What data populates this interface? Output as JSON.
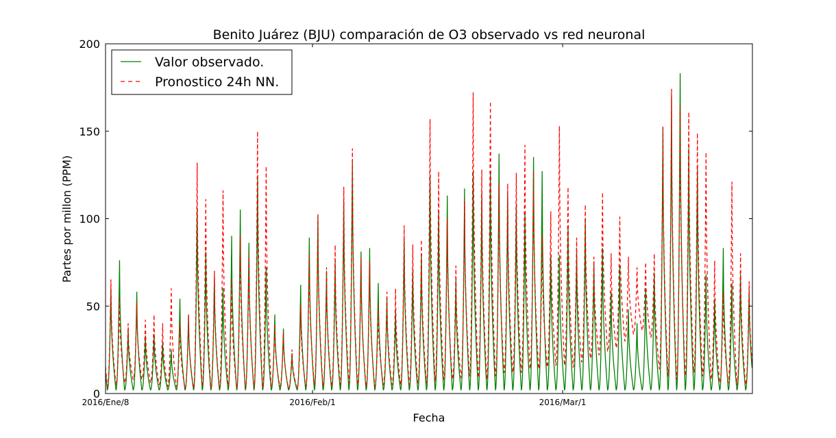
{
  "chart_data": {
    "type": "line",
    "title": "Benito Juárez (BJU) comparación de O3 observado vs red neuronal",
    "xlabel": "Fecha",
    "ylabel": "Partes por millon (PPM)",
    "xlim": [
      "2016-01-08",
      "2016-03-23"
    ],
    "ylim": [
      0,
      200
    ],
    "y_ticks": [
      0,
      50,
      100,
      150,
      200
    ],
    "x_ticks": [
      {
        "date": "2016-01-08",
        "label": "2016/Ene/8"
      },
      {
        "date": "2016-02-01",
        "label": "2016/Feb/1"
      },
      {
        "date": "2016-03-01",
        "label": "2016/Mar/1"
      }
    ],
    "grid": false,
    "legend_position": "top-left",
    "sampling": "daily maximum (hourly series; daily peak near 15:00, minimum near 05:00)",
    "series": [
      {
        "name": "Valor observado.",
        "color": "#008000",
        "style": "solid",
        "start_date": "2016-01-08",
        "daily_peaks": [
          60,
          76,
          37,
          58,
          33,
          34,
          29,
          25,
          54,
          45,
          106,
          81,
          67,
          60,
          90,
          105,
          86,
          123,
          72,
          45,
          37,
          23,
          62,
          89,
          101,
          70,
          75,
          110,
          133,
          81,
          83,
          63,
          55,
          47,
          89,
          71,
          80,
          125,
          104,
          113,
          65,
          117,
          127,
          115,
          127,
          137,
          115,
          108,
          104,
          135,
          127,
          79,
          79,
          96,
          81,
          100,
          75,
          83,
          58,
          73,
          48,
          40,
          60,
          69,
          152,
          170,
          183,
          140,
          130,
          68,
          54,
          83,
          63,
          68,
          59
        ],
        "daily_lows": [
          2,
          2,
          2,
          2,
          2,
          2,
          2,
          2,
          2,
          2,
          2,
          2,
          2,
          2,
          2,
          2,
          2,
          2,
          2,
          2,
          2,
          2,
          2,
          2,
          2,
          2,
          2,
          2,
          2,
          2,
          2,
          2,
          2,
          2,
          2,
          2,
          2,
          2,
          2,
          2,
          2,
          2,
          2,
          2,
          2,
          2,
          2,
          2,
          2,
          2,
          2,
          2,
          2,
          2,
          2,
          2,
          2,
          2,
          2,
          2,
          2,
          2,
          2,
          2,
          2,
          2,
          2,
          2,
          2,
          2,
          2,
          2,
          2,
          2,
          2
        ]
      },
      {
        "name": "Pronostico 24h NN.",
        "color": "#ff0000",
        "style": "dashed",
        "start_date": "2016-01-08",
        "daily_peaks": [
          65,
          55,
          40,
          52,
          42,
          45,
          40,
          60,
          40,
          45,
          132,
          111,
          70,
          116,
          65,
          90,
          80,
          150,
          130,
          40,
          35,
          25,
          50,
          80,
          103,
          72,
          85,
          118,
          140,
          77,
          75,
          50,
          58,
          60,
          96,
          85,
          88,
          157,
          127,
          100,
          73,
          110,
          172,
          128,
          167,
          120,
          120,
          126,
          142,
          127,
          90,
          104,
          153,
          118,
          89,
          108,
          78,
          115,
          80,
          101,
          78,
          72,
          75,
          80,
          153,
          174,
          165,
          161,
          149,
          138,
          76,
          58,
          121,
          80,
          64
        ],
        "daily_lows": [
          4,
          5,
          6,
          8,
          8,
          6,
          5,
          4,
          4,
          3,
          3,
          4,
          3,
          3,
          4,
          3,
          3,
          3,
          3,
          4,
          4,
          3,
          3,
          4,
          5,
          4,
          4,
          5,
          6,
          5,
          4,
          4,
          5,
          5,
          5,
          5,
          6,
          6,
          7,
          8,
          8,
          9,
          10,
          9,
          8,
          10,
          12,
          12,
          12,
          14,
          14,
          15,
          16,
          16,
          15,
          18,
          20,
          22,
          24,
          26,
          30,
          34,
          36,
          32,
          14,
          10,
          8,
          10,
          12,
          10,
          8,
          6,
          6,
          5,
          5
        ]
      }
    ]
  }
}
